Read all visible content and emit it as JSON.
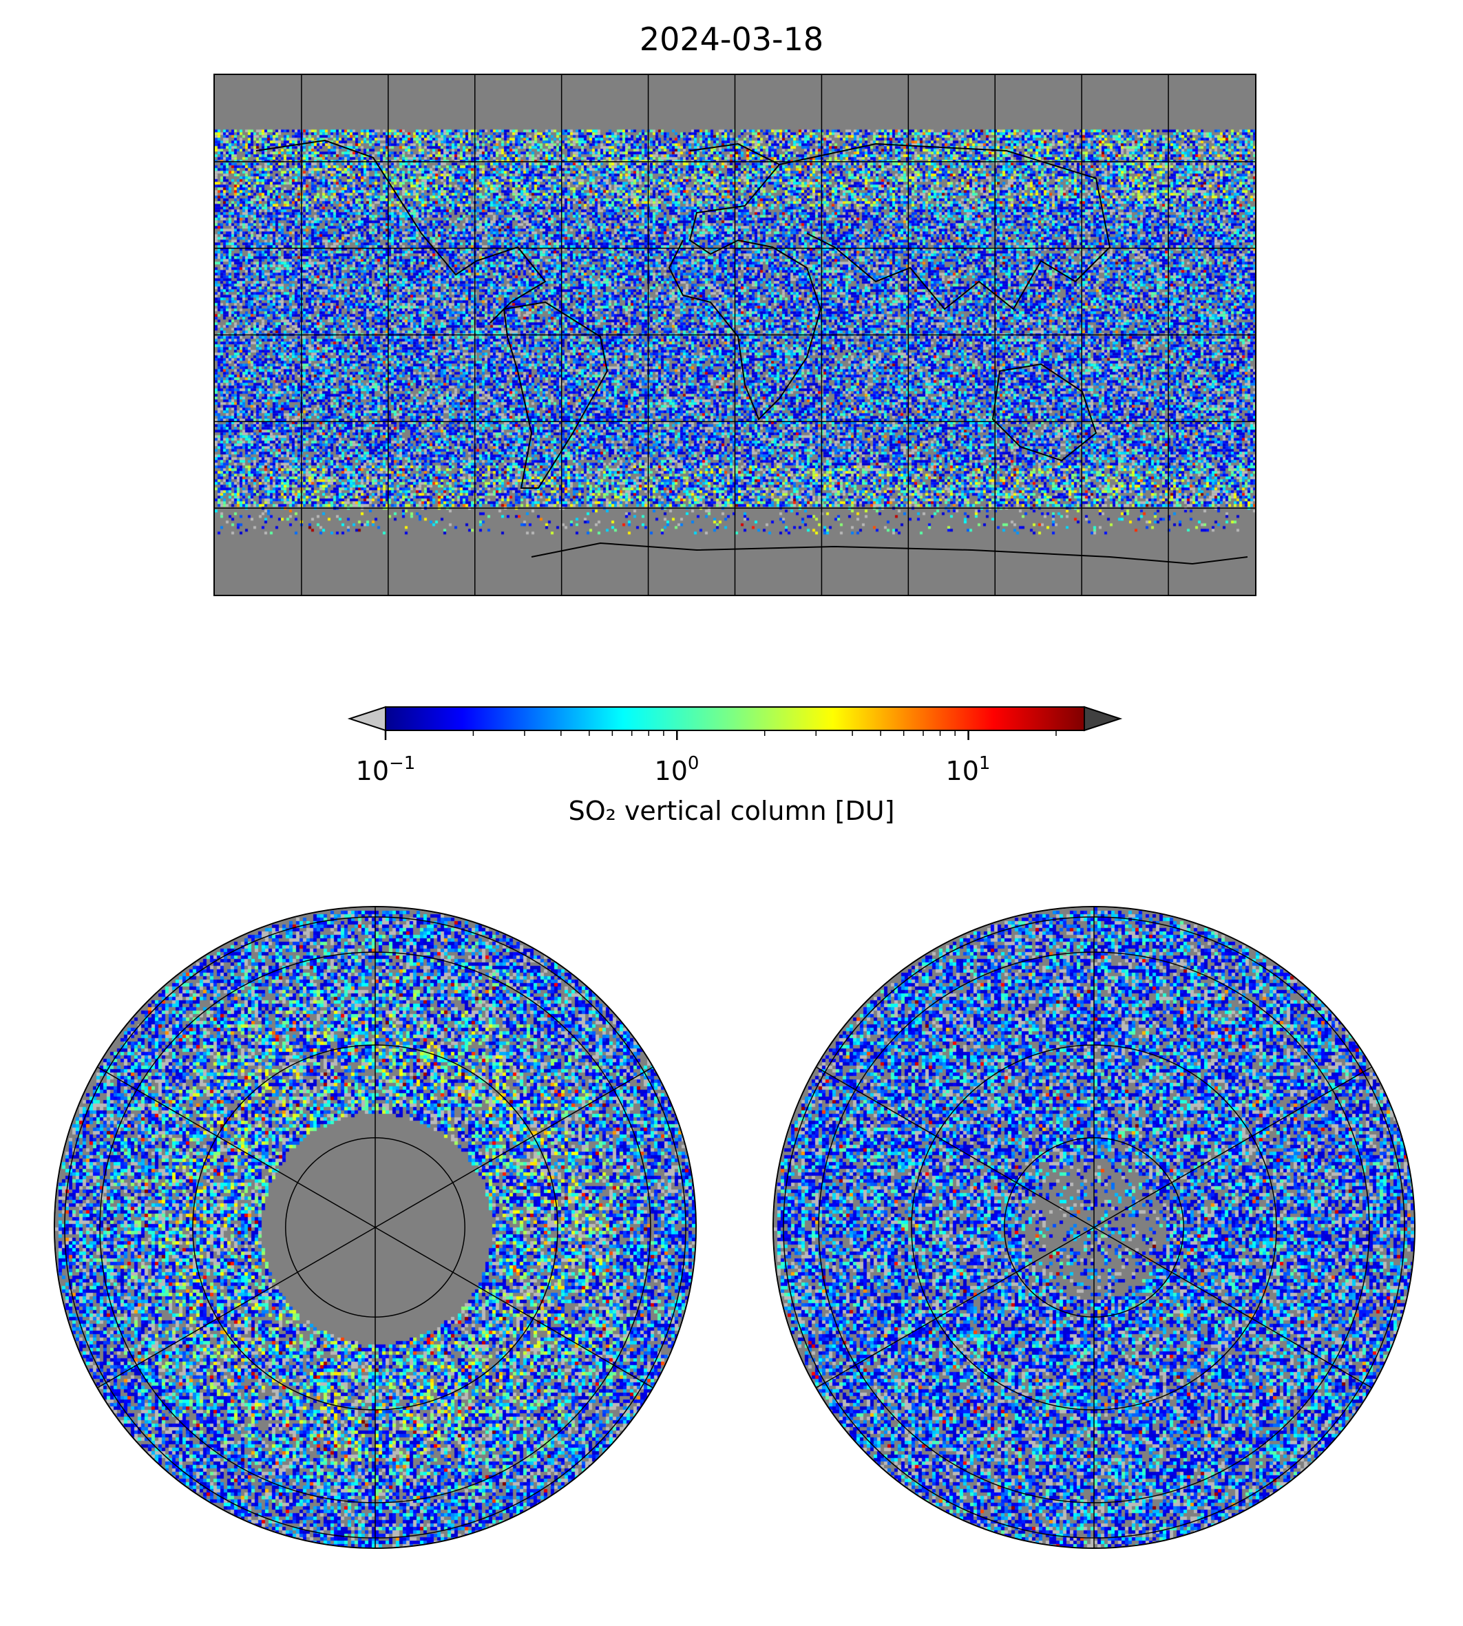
{
  "title": "2024-03-18",
  "colorbar": {
    "label": "SO₂ vertical column [DU]",
    "scale": "log",
    "min": 0.1,
    "max": 25,
    "ticks": [
      {
        "value": 0.1,
        "base": "10",
        "exp": "−1"
      },
      {
        "value": 1,
        "base": "10",
        "exp": "0"
      },
      {
        "value": 10,
        "base": "10",
        "exp": "1"
      }
    ],
    "colormap": "jet",
    "under_color": "#c8c8c8",
    "over_color": "#404040",
    "extend": "both"
  },
  "maps": {
    "world": {
      "projection": "equirectangular",
      "gridlines_lon_deg": 30,
      "gridlines_lat_deg": 30
    },
    "north": {
      "projection": "north-polar-stereographic"
    },
    "south": {
      "projection": "south-polar-stereographic"
    }
  },
  "colors": {
    "background_gray": "#808080",
    "gridline": "#000000",
    "coastline": "#000000"
  }
}
